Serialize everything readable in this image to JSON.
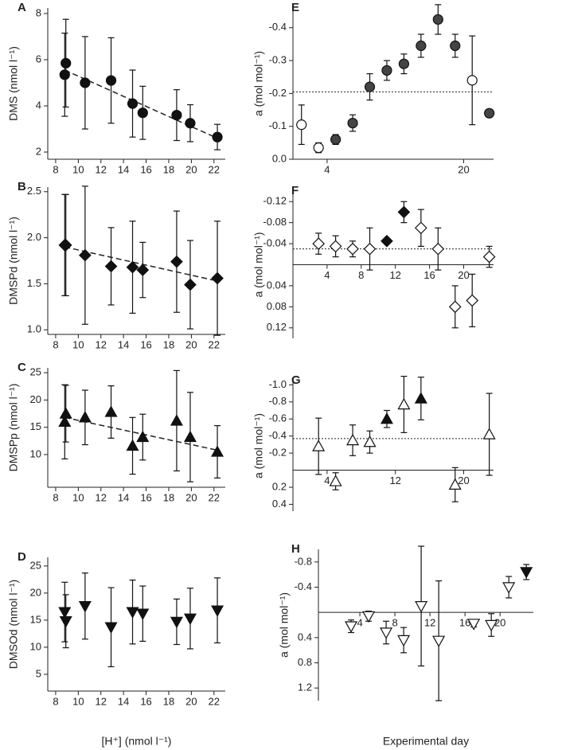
{
  "chart_data": [
    {
      "type": "scatter",
      "label": "A",
      "ylabel": "DMS (nmol l⁻¹)",
      "marker": "circle",
      "xlim": [
        7.3,
        23
      ],
      "ylim": [
        1.69,
        8.24
      ],
      "xticks": [
        8,
        10,
        12,
        14,
        16,
        18,
        20,
        22
      ],
      "yticks": [
        2,
        4,
        6,
        8
      ],
      "x": [
        8.8,
        8.9,
        10.6,
        12.9,
        14.8,
        15.7,
        18.7,
        19.9,
        22.3
      ],
      "values": [
        5.35,
        5.85,
        5.0,
        5.1,
        4.1,
        3.7,
        3.6,
        3.25,
        2.65
      ],
      "errors": [
        1.8,
        1.9,
        2.0,
        1.85,
        1.45,
        1.15,
        1.1,
        0.8,
        0.55
      ],
      "colors": [
        "#111111",
        "#111111",
        "#111111",
        "#111111",
        "#111111",
        "#111111",
        "#111111",
        "#111111",
        "#111111"
      ],
      "fit": {
        "x": [
          8.8,
          22.3
        ],
        "values": [
          5.55,
          2.6
        ]
      }
    },
    {
      "type": "scatter",
      "label": "B",
      "ylabel": "DMSPd (nmol l⁻¹)",
      "marker": "diamond",
      "xlim": [
        7.3,
        23
      ],
      "ylim": [
        0.95,
        2.55
      ],
      "xticks": [
        8,
        10,
        12,
        14,
        16,
        18,
        20,
        22
      ],
      "yticks": [
        {
          "value": 1,
          "label": "1.0"
        },
        1.5,
        {
          "value": 2,
          "label": "2.0"
        },
        2.5
      ],
      "x": [
        8.8,
        8.9,
        10.6,
        12.9,
        14.8,
        15.7,
        18.7,
        19.9,
        22.3
      ],
      "values": [
        1.92,
        1.92,
        1.81,
        1.69,
        1.68,
        1.65,
        1.74,
        1.49,
        1.56
      ],
      "errors": [
        0.55,
        0.55,
        0.75,
        0.42,
        0.5,
        0.3,
        0.55,
        0.48,
        0.62
      ],
      "colors": [
        "#111111",
        "#111111",
        "#111111",
        "#111111",
        "#111111",
        "#111111",
        "#111111",
        "#111111",
        "#111111"
      ],
      "fit": {
        "x": [
          8.8,
          22.3
        ],
        "values": [
          1.9,
          1.53
        ]
      }
    },
    {
      "type": "scatter",
      "label": "C",
      "ylabel": "DMSPp (nmol l⁻¹)",
      "marker": "triangle-up",
      "xlim": [
        7.3,
        23
      ],
      "ylim": [
        4,
        25.9
      ],
      "xticks": [
        8,
        10,
        12,
        14,
        16,
        18,
        20,
        22
      ],
      "yticks": [
        10,
        15,
        20,
        25
      ],
      "x": [
        8.8,
        8.9,
        10.6,
        12.9,
        14.8,
        15.7,
        18.7,
        19.9,
        22.3
      ],
      "values": [
        16,
        17.5,
        16.8,
        17.8,
        11.6,
        13.2,
        16.2,
        13.2,
        10.5
      ],
      "errors": [
        6.8,
        5.2,
        5,
        4.8,
        5.2,
        4.2,
        9.2,
        8.2,
        4.8
      ],
      "colors": [
        "#111111",
        "#111111",
        "#111111",
        "#111111",
        "#111111",
        "#111111",
        "#111111",
        "#111111",
        "#111111"
      ],
      "fit": {
        "x": [
          8.8,
          22.3
        ],
        "values": [
          16.8,
          10.8
        ]
      }
    },
    {
      "type": "scatter",
      "label": "D",
      "ylabel": "DMSOd (nmol l⁻¹)",
      "xlabel": "[H⁺] (nmol l⁻¹)",
      "marker": "triangle-down",
      "xlim": [
        7.3,
        23
      ],
      "ylim": [
        1.9,
        26.6
      ],
      "xticks": [
        8,
        10,
        12,
        14,
        16,
        18,
        20,
        22
      ],
      "yticks": [
        5,
        10,
        15,
        20,
        25
      ],
      "x": [
        8.8,
        8.9,
        10.6,
        12.9,
        14.8,
        15.7,
        18.7,
        19.9,
        22.3
      ],
      "values": [
        16.5,
        14.8,
        17.6,
        13.7,
        16.5,
        16.2,
        14.7,
        15.3,
        16.8
      ],
      "errors": [
        5.5,
        4.9,
        6.1,
        7.3,
        5.9,
        5.1,
        4.2,
        5.6,
        6
      ],
      "colors": [
        "#111111",
        "#111111",
        "#111111",
        "#111111",
        "#111111",
        "#111111",
        "#111111",
        "#111111",
        "#111111"
      ]
    },
    {
      "type": "scatter",
      "label": "E",
      "ylabel": "a (mol mol⁻¹)",
      "marker": "circle",
      "xlim": [
        0,
        23.5
      ],
      "ylim": [
        0,
        -0.46
      ],
      "xticks": [
        4,
        20
      ],
      "yticks": [
        {
          "value": 0,
          "label": "0.0"
        },
        -0.1,
        -0.2,
        -0.3,
        -0.4
      ],
      "x": [
        1,
        3,
        5,
        7,
        9,
        11,
        13,
        15,
        17,
        19,
        21,
        23
      ],
      "values": [
        -0.105,
        -0.035,
        -0.06,
        -0.11,
        -0.22,
        -0.27,
        -0.29,
        -0.345,
        -0.425,
        -0.345,
        -0.24,
        -0.14
      ],
      "errors": [
        0.06,
        0.015,
        0.015,
        0.025,
        0.04,
        0.03,
        0.03,
        0.035,
        0.045,
        0.035,
        0.135,
        0.01
      ],
      "colors": [
        "#ffffff",
        "#ffffff",
        "#444444",
        "#444444",
        "#444444",
        "#444444",
        "#444444",
        "#444444",
        "#444444",
        "#444444",
        "#ffffff",
        "#444444"
      ],
      "reference_line": -0.205
    },
    {
      "type": "scatter",
      "label": "F",
      "ylabel": "a (mol mol⁻¹)",
      "marker": "diamond",
      "xlim": [
        0,
        23.5
      ],
      "ylim": [
        0.14,
        -0.14
      ],
      "xticks": [
        4,
        8,
        12,
        16,
        20
      ],
      "yticks": [
        -0.12,
        -0.08,
        -0.04,
        0.04,
        0.08,
        0.12
      ],
      "x": [
        3,
        5,
        7,
        9,
        11,
        13,
        15,
        17,
        19,
        21,
        23
      ],
      "values": [
        -0.04,
        -0.035,
        -0.03,
        -0.03,
        -0.045,
        -0.1,
        -0.07,
        -0.03,
        0.08,
        0.068,
        -0.015
      ],
      "errors": [
        0.02,
        0.02,
        0.015,
        0.04,
        0.005,
        0.02,
        0.035,
        0.04,
        0.04,
        0.05,
        0.02
      ],
      "colors": [
        "#ffffff",
        "#ffffff",
        "#ffffff",
        "#ffffff",
        "#111111",
        "#111111",
        "#ffffff",
        "#ffffff",
        "#ffffff",
        "#ffffff",
        "#ffffff"
      ],
      "reference_line": -0.03
    },
    {
      "type": "scatter",
      "label": "G",
      "ylabel": "a (mol mol⁻¹)",
      "marker": "triangle-up",
      "xlim": [
        0,
        23.5
      ],
      "ylim": [
        0.48,
        -1.05
      ],
      "xticks": [
        4,
        12,
        20
      ],
      "yticks": [
        {
          "value": -1,
          "label": "-1.0"
        },
        -0.8,
        -0.6,
        -0.4,
        -0.2,
        0.2,
        0.4
      ],
      "x": [
        3,
        5,
        7,
        9,
        11,
        13,
        15,
        19,
        23
      ],
      "values": [
        -0.28,
        0.13,
        -0.35,
        -0.33,
        -0.6,
        -0.77,
        -0.84,
        0.17,
        -0.42
      ],
      "errors": [
        0.33,
        0.1,
        0.18,
        0.13,
        0.1,
        0.33,
        0.25,
        0.2,
        0.48
      ],
      "colors": [
        "#ffffff",
        "#ffffff",
        "#ffffff",
        "#ffffff",
        "#111111",
        "#ffffff",
        "#111111",
        "#ffffff",
        "#ffffff"
      ],
      "reference_line": -0.37
    },
    {
      "type": "scatter",
      "label": "H",
      "ylabel": "a (mol mol⁻¹)",
      "xlabel": "Experimental day",
      "marker": "triangle-down",
      "xlim": [
        -0.73,
        23.8
      ],
      "ylim": [
        1.4,
        -1.0
      ],
      "xticks": [
        4,
        8,
        12,
        16,
        20
      ],
      "yticks": [
        -0.8,
        -0.4,
        0.4,
        0.8,
        1.2
      ],
      "x": [
        3,
        5,
        7,
        9,
        11,
        13,
        17,
        19,
        21,
        23
      ],
      "values": [
        0.22,
        0.06,
        0.32,
        0.44,
        -0.1,
        0.45,
        0.18,
        0.2,
        -0.4,
        -0.64
      ],
      "errors": [
        0.1,
        0.08,
        0.18,
        0.2,
        0.95,
        0.95,
        0.05,
        0.18,
        0.17,
        0.12
      ],
      "colors": [
        "#ffffff",
        "#ffffff",
        "#ffffff",
        "#ffffff",
        "#ffffff",
        "#ffffff",
        "#ffffff",
        "#ffffff",
        "#ffffff",
        "#111111"
      ]
    }
  ]
}
